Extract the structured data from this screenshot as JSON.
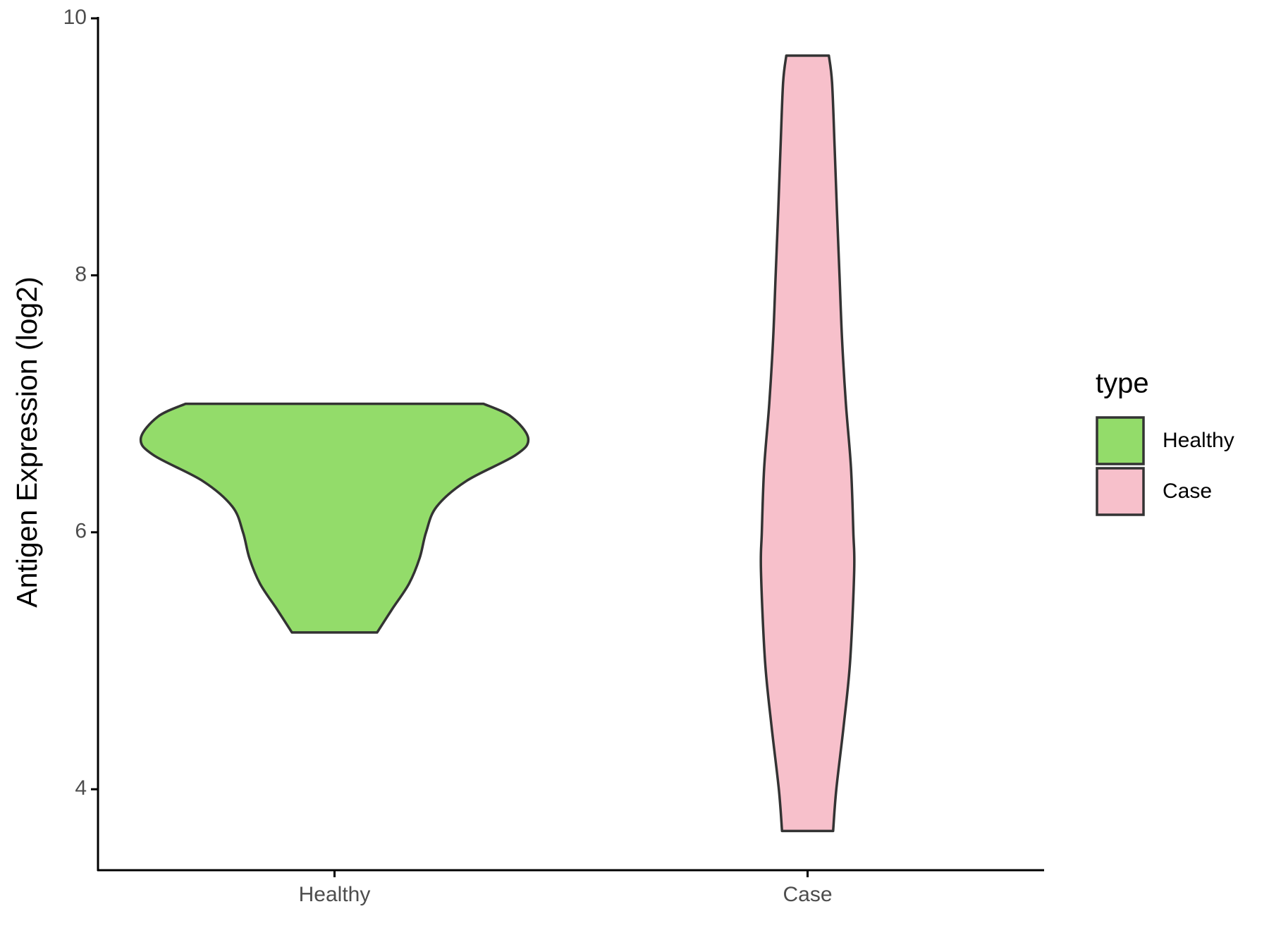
{
  "chart_data": {
    "type": "violin",
    "y_label": "Antigen Expression (log2)",
    "categories": [
      "Healthy",
      "Case"
    ],
    "legend_title": "type",
    "legend": "right",
    "ylim": [
      3.37,
      10
    ],
    "yticks": [
      4,
      6,
      8,
      10
    ],
    "series": [
      {
        "name": "Healthy",
        "color": "#93dc6a",
        "y": [
          7.0,
          6.9,
          6.73,
          6.6,
          6.4,
          6.2,
          6.0,
          5.8,
          5.6,
          5.4,
          5.22
        ],
        "density": [
          0.7,
          0.83,
          0.91,
          0.85,
          0.62,
          0.48,
          0.43,
          0.4,
          0.35,
          0.27,
          0.2
        ]
      },
      {
        "name": "Case",
        "color": "#f7c0cb",
        "y": [
          9.71,
          9.5,
          9.0,
          8.5,
          8.0,
          7.5,
          7.0,
          6.5,
          6.0,
          5.7,
          5.0,
          4.5,
          4.0,
          3.675
        ],
        "density": [
          0.1,
          0.115,
          0.127,
          0.138,
          0.15,
          0.162,
          0.18,
          0.204,
          0.215,
          0.219,
          0.2,
          0.17,
          0.135,
          0.12
        ]
      }
    ]
  }
}
